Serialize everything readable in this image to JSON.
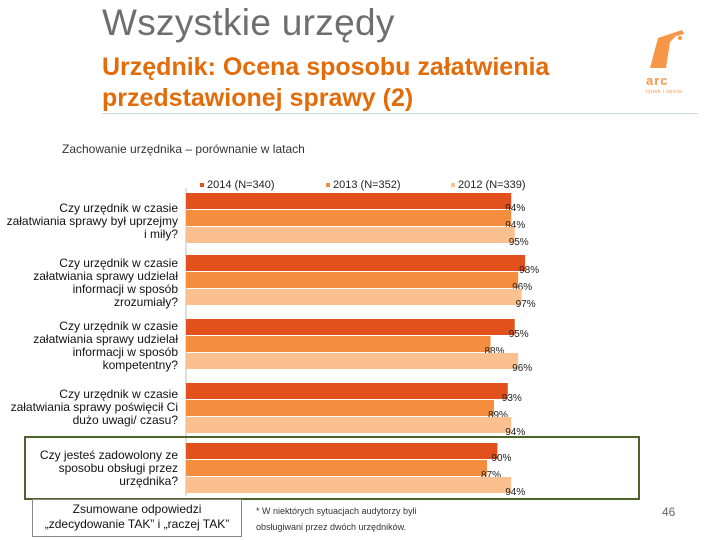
{
  "header": {
    "title": "Wszystkie urzędy",
    "subtitle": "Urzędnik: Ocena sposobu załatwienia przedstawionej sprawy (2)",
    "logo_text": "arc",
    "logo_sub": "rynek i opinia"
  },
  "chart_data": {
    "type": "bar",
    "orientation": "horizontal",
    "title": "Zachowanie urzędnika – porównanie w latach",
    "categories": [
      "Czy urzędnik w czasie załatwiania sprawy był uprzejmy i miły?",
      "Czy urzędnik w czasie załatwiania sprawy udzielał informacji w sposób zrozumiały?",
      "Czy urzędnik w czasie załatwiania sprawy udzielał informacji w sposób kompetentny?",
      "Czy urzędnik w czasie załatwiania sprawy poświęcił Ci dużo uwagi/ czasu?",
      "Czy jesteś zadowolony ze sposobu obsługi przez urzędnika?"
    ],
    "series": [
      {
        "name": "2014 (N=340)",
        "color": "#e2501b",
        "values": [
          94,
          98,
          95,
          93,
          90
        ]
      },
      {
        "name": "2013 (N=352)",
        "color": "#f48e3e",
        "values": [
          94,
          96,
          88,
          89,
          87
        ]
      },
      {
        "name": "2012 (N=339)",
        "color": "#fac08f",
        "values": [
          95,
          97,
          96,
          94,
          94
        ]
      }
    ],
    "value_suffix": "%",
    "xlim": [
      0,
      100
    ],
    "legend": "top",
    "grid": false
  },
  "note": "Zsumowane odpowiedzi „zdecydowanie TAK” i „raczej TAK”",
  "footnote": "* W niektórych sytuacjach audytorzy byli obsługiwani przez dwóch urzędników.",
  "page_number": "46"
}
